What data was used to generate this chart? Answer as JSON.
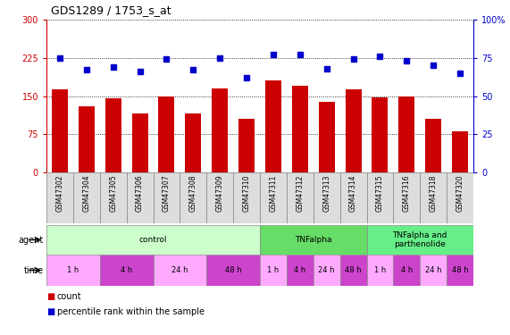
{
  "title": "GDS1289 / 1753_s_at",
  "samples": [
    "GSM47302",
    "GSM47304",
    "GSM47305",
    "GSM47306",
    "GSM47307",
    "GSM47308",
    "GSM47309",
    "GSM47310",
    "GSM47311",
    "GSM47312",
    "GSM47313",
    "GSM47314",
    "GSM47315",
    "GSM47316",
    "GSM47318",
    "GSM47320"
  ],
  "counts": [
    163,
    130,
    145,
    115,
    150,
    115,
    165,
    105,
    180,
    170,
    138,
    163,
    148,
    150,
    105,
    80
  ],
  "percentiles": [
    75,
    67,
    69,
    66,
    74,
    67,
    75,
    62,
    77,
    77,
    68,
    74,
    76,
    73,
    70,
    65
  ],
  "bar_color": "#cc0000",
  "dot_color": "#0000cc",
  "ylim_left": [
    0,
    300
  ],
  "ylim_right": [
    0,
    100
  ],
  "yticks_left": [
    0,
    75,
    150,
    225,
    300
  ],
  "yticks_right": [
    0,
    25,
    50,
    75,
    100
  ],
  "agent_groups": [
    {
      "label": "control",
      "start": 0,
      "end": 8,
      "color": "#ccffcc"
    },
    {
      "label": "TNFalpha",
      "start": 8,
      "end": 12,
      "color": "#66dd66"
    },
    {
      "label": "TNFalpha and\nparthenolide",
      "start": 12,
      "end": 16,
      "color": "#66ee88"
    }
  ],
  "time_groups": [
    {
      "label": "1 h",
      "start": 0,
      "end": 2,
      "color": "#ffaaff"
    },
    {
      "label": "4 h",
      "start": 2,
      "end": 4,
      "color": "#cc44cc"
    },
    {
      "label": "24 h",
      "start": 4,
      "end": 6,
      "color": "#ffaaff"
    },
    {
      "label": "48 h",
      "start": 6,
      "end": 8,
      "color": "#cc44cc"
    },
    {
      "label": "1 h",
      "start": 8,
      "end": 9,
      "color": "#ffaaff"
    },
    {
      "label": "4 h",
      "start": 9,
      "end": 10,
      "color": "#cc44cc"
    },
    {
      "label": "24 h",
      "start": 10,
      "end": 11,
      "color": "#ffaaff"
    },
    {
      "label": "48 h",
      "start": 11,
      "end": 12,
      "color": "#cc44cc"
    },
    {
      "label": "1 h",
      "start": 12,
      "end": 13,
      "color": "#ffaaff"
    },
    {
      "label": "4 h",
      "start": 13,
      "end": 14,
      "color": "#cc44cc"
    },
    {
      "label": "24 h",
      "start": 14,
      "end": 15,
      "color": "#ffaaff"
    },
    {
      "label": "48 h",
      "start": 15,
      "end": 16,
      "color": "#cc44cc"
    }
  ],
  "legend_count_color": "#cc0000",
  "legend_dot_color": "#0000cc",
  "agent_label": "agent",
  "time_label": "time",
  "legend_count_label": "count",
  "legend_percentile_label": "percentile rank within the sample",
  "background_color": "#ffffff",
  "sample_bg_color": "#dddddd",
  "grid_color": "#000000"
}
